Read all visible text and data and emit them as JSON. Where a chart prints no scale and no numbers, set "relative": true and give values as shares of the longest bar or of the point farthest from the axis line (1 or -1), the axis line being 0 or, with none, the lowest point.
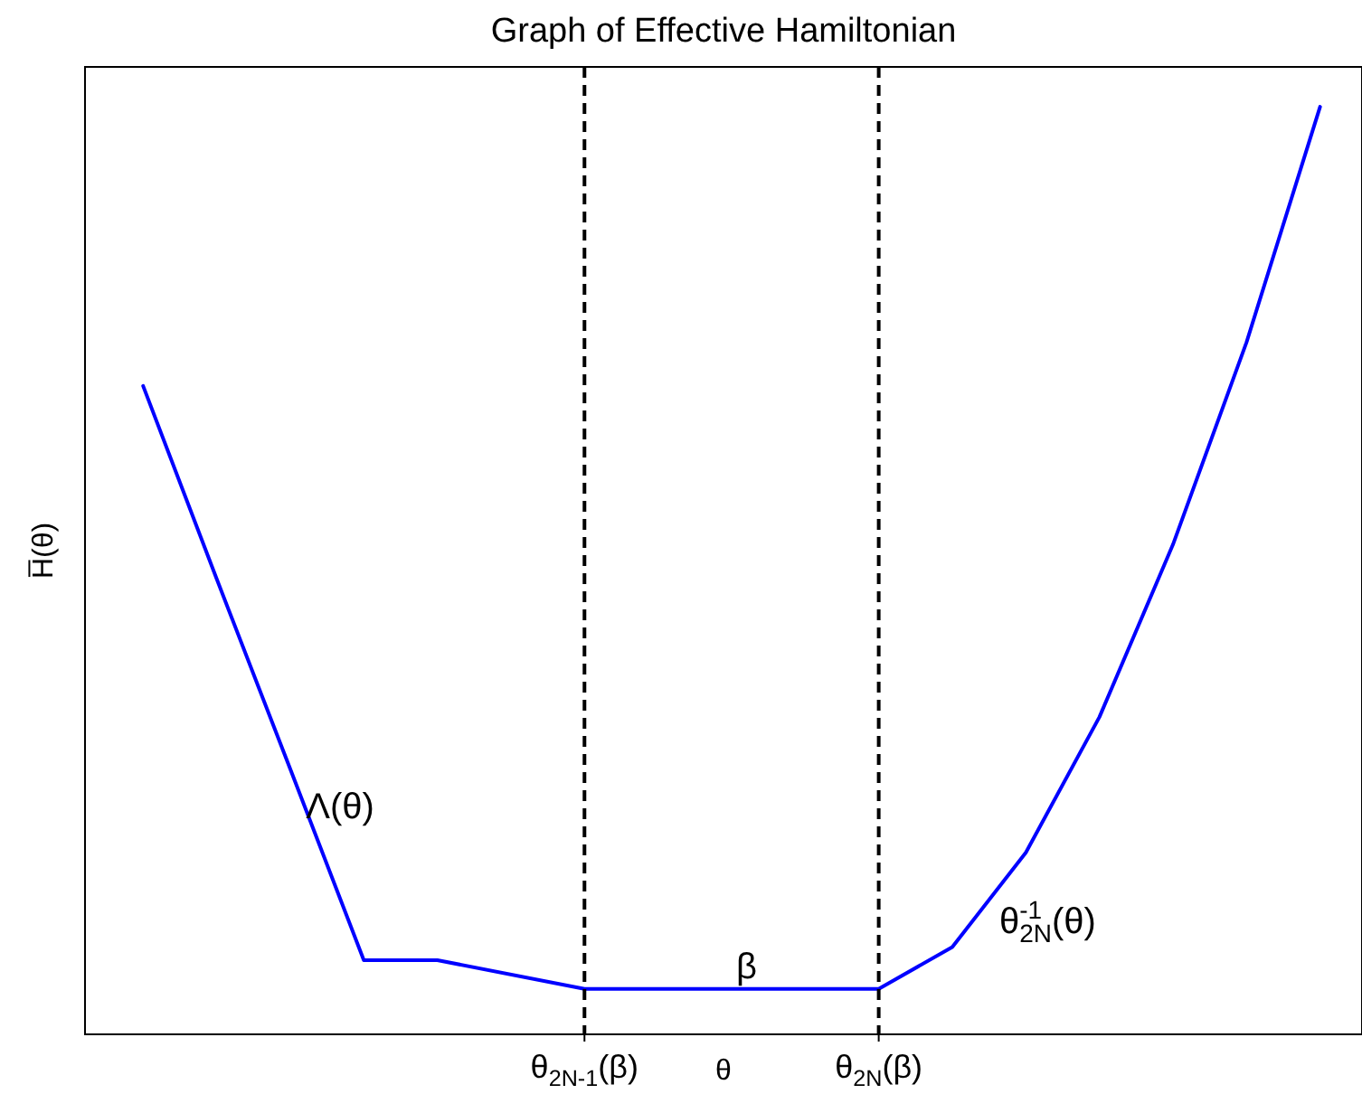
{
  "chart_data": {
    "type": "line",
    "title": "Graph of Effective Hamiltonian",
    "xlabel": "θ",
    "ylabel": "H̅(θ)",
    "relative": true,
    "legend": false,
    "grid": false,
    "marker": "none",
    "line_style": "solid",
    "categories": [
      null,
      null,
      null,
      null,
      null,
      null,
      "θ$_{2N-1}$(β)",
      null,
      null,
      null,
      "θ$_{2N}$(β)",
      null,
      null,
      null,
      null,
      null,
      null
    ],
    "series": [
      {
        "color": "#0000ff",
        "values": [
          0.699,
          0.491,
          0.286,
          0.08,
          0.08,
          null,
          0.049,
          null,
          0.049,
          null,
          0.049,
          0.094,
          0.196,
          0.342,
          0.528,
          0.746,
          1
        ]
      }
    ],
    "annotations": [
      "Λ(θ)",
      "β",
      "θ$^{-1}$$_{2N}$(θ)"
    ],
    "ref_lines": [
      {
        "axis": "x",
        "value": "θ$_{2N-1}$(β)",
        "color": "#000000",
        "line_style": "dashed"
      },
      {
        "axis": "x",
        "value": "θ$_{2N}$(β)",
        "color": "#000000",
        "line_style": "dashed"
      }
    ]
  }
}
